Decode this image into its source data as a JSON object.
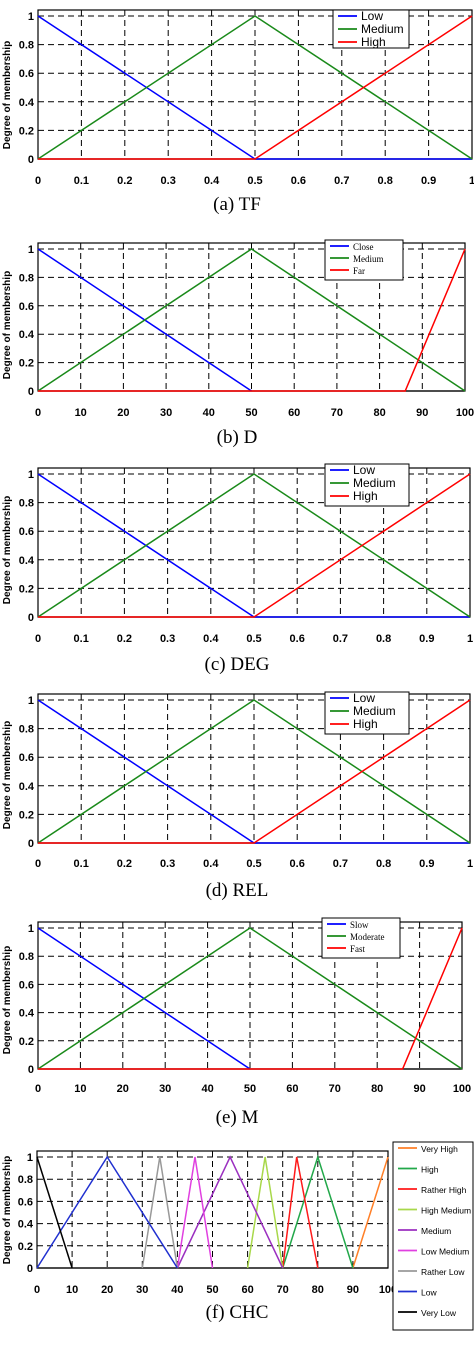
{
  "chart_data": [
    {
      "type": "line",
      "caption": "(a) TF",
      "ylabel": "Degree of membership",
      "xlim": [
        0,
        1
      ],
      "ylim": [
        0,
        1
      ],
      "xticks": [
        "0",
        "0.1",
        "0.2",
        "0.3",
        "0.4",
        "0.5",
        "0.6",
        "0.7",
        "0.8",
        "0.9",
        "1"
      ],
      "yticks": [
        "0",
        "0.2",
        "0.4",
        "0.6",
        "0.8",
        "1"
      ],
      "grid": true,
      "legend_position": "top-right",
      "series": [
        {
          "name": "Low",
          "color": "#0000ff",
          "x": [
            0,
            0.5,
            1
          ],
          "y": [
            1,
            0,
            0
          ]
        },
        {
          "name": "Medium",
          "color": "#1a8a1a",
          "x": [
            0,
            0.5,
            1
          ],
          "y": [
            0,
            1,
            0
          ]
        },
        {
          "name": "High",
          "color": "#ff0000",
          "x": [
            0,
            0.5,
            1
          ],
          "y": [
            0,
            0,
            1
          ]
        }
      ]
    },
    {
      "type": "line",
      "caption": "(b) D",
      "ylabel": "Degree of membership",
      "xlim": [
        0,
        100
      ],
      "ylim": [
        0,
        1
      ],
      "xticks": [
        "0",
        "10",
        "20",
        "30",
        "40",
        "50",
        "60",
        "70",
        "80",
        "90",
        "100"
      ],
      "yticks": [
        "0",
        "0.2",
        "0.4",
        "0.6",
        "0.8",
        "1"
      ],
      "grid": true,
      "legend_position": "top-right",
      "series": [
        {
          "name": "Close",
          "color": "#0000ff",
          "x": [
            0,
            50
          ],
          "y": [
            1,
            0
          ]
        },
        {
          "name": "Medium",
          "color": "#1a8a1a",
          "x": [
            0,
            50,
            100
          ],
          "y": [
            0,
            1,
            0
          ]
        },
        {
          "name": "Far",
          "color": "#ff0000",
          "x": [
            0,
            86,
            100
          ],
          "y": [
            0,
            0,
            1
          ]
        }
      ]
    },
    {
      "type": "line",
      "caption": "(c) DEG",
      "ylabel": "Degree of membership",
      "xlim": [
        0,
        1
      ],
      "ylim": [
        0,
        1
      ],
      "xticks": [
        "0",
        "0.1",
        "0.2",
        "0.3",
        "0.4",
        "0.5",
        "0.6",
        "0.7",
        "0.8",
        "0.9",
        "1"
      ],
      "yticks": [
        "0",
        "0.2",
        "0.4",
        "0.6",
        "0.8",
        "1"
      ],
      "grid": true,
      "legend_position": "top-right",
      "series": [
        {
          "name": "Low",
          "color": "#0000ff",
          "x": [
            0,
            0.5,
            1
          ],
          "y": [
            1,
            0,
            0
          ]
        },
        {
          "name": "Medium",
          "color": "#1a8a1a",
          "x": [
            0,
            0.5,
            1
          ],
          "y": [
            0,
            1,
            0
          ]
        },
        {
          "name": "High",
          "color": "#ff0000",
          "x": [
            0,
            0.5,
            1
          ],
          "y": [
            0,
            0,
            1
          ]
        }
      ]
    },
    {
      "type": "line",
      "caption": "(d) REL",
      "ylabel": "Degree of membership",
      "xlim": [
        0,
        1
      ],
      "ylim": [
        0,
        1
      ],
      "xticks": [
        "0",
        "0.1",
        "0.2",
        "0.3",
        "0.4",
        "0.5",
        "0.6",
        "0.7",
        "0.8",
        "0.9",
        "1"
      ],
      "yticks": [
        "0",
        "0.2",
        "0.4",
        "0.6",
        "0.8",
        "1"
      ],
      "grid": true,
      "legend_position": "top-right",
      "series": [
        {
          "name": "Low",
          "color": "#0000ff",
          "x": [
            0,
            0.5,
            1
          ],
          "y": [
            1,
            0,
            0
          ]
        },
        {
          "name": "Medium",
          "color": "#1a8a1a",
          "x": [
            0,
            0.5,
            1
          ],
          "y": [
            0,
            1,
            0
          ]
        },
        {
          "name": "High",
          "color": "#ff0000",
          "x": [
            0,
            0.5,
            1
          ],
          "y": [
            0,
            0,
            1
          ]
        }
      ]
    },
    {
      "type": "line",
      "caption": "(e) M",
      "ylabel": "Degree of membership",
      "xlim": [
        0,
        100
      ],
      "ylim": [
        0,
        1
      ],
      "xticks": [
        "0",
        "10",
        "20",
        "30",
        "40",
        "50",
        "60",
        "70",
        "80",
        "90",
        "100"
      ],
      "yticks": [
        "0",
        "0.2",
        "0.4",
        "0.6",
        "0.8",
        "1"
      ],
      "grid": true,
      "legend_position": "top-right",
      "series": [
        {
          "name": "Slow",
          "color": "#0000ff",
          "x": [
            0,
            50
          ],
          "y": [
            1,
            0
          ]
        },
        {
          "name": "Moderate",
          "color": "#1a8a1a",
          "x": [
            0,
            50,
            100
          ],
          "y": [
            0,
            1,
            0
          ]
        },
        {
          "name": "Fast",
          "color": "#ff0000",
          "x": [
            0,
            86,
            100
          ],
          "y": [
            0,
            0,
            1
          ]
        }
      ]
    },
    {
      "type": "line",
      "caption": "(f) CHC",
      "ylabel": "Degree of membership",
      "xlim": [
        0,
        100
      ],
      "ylim": [
        0,
        1
      ],
      "xticks": [
        "0",
        "10",
        "20",
        "30",
        "40",
        "50",
        "60",
        "70",
        "80",
        "90",
        "100"
      ],
      "yticks": [
        "0",
        "0.2",
        "0.4",
        "0.6",
        "0.8",
        "1"
      ],
      "grid": true,
      "legend_position": "right",
      "series": [
        {
          "name": "Very High",
          "color": "#ff7f27",
          "x": [
            90,
            100
          ],
          "y": [
            0,
            1
          ]
        },
        {
          "name": "High",
          "color": "#22a84a",
          "x": [
            70,
            80,
            90
          ],
          "y": [
            0,
            1,
            0
          ]
        },
        {
          "name": "Rather High",
          "color": "#ff1a1a",
          "x": [
            70,
            74,
            80
          ],
          "y": [
            0,
            1,
            0
          ]
        },
        {
          "name": "High Medium",
          "color": "#a8d84a",
          "x": [
            60,
            65,
            70
          ],
          "y": [
            0,
            1,
            0
          ]
        },
        {
          "name": "Medium",
          "color": "#9b30c0",
          "x": [
            40,
            55,
            70
          ],
          "y": [
            0,
            1,
            0
          ]
        },
        {
          "name": "Low Medium",
          "color": "#e040e0",
          "x": [
            40,
            45,
            50
          ],
          "y": [
            0,
            1,
            0
          ]
        },
        {
          "name": "Rather Low",
          "color": "#999999",
          "x": [
            30,
            35,
            40
          ],
          "y": [
            0,
            1,
            0
          ]
        },
        {
          "name": "Low",
          "color": "#2030d0",
          "x": [
            0,
            20,
            40
          ],
          "y": [
            0,
            1,
            0
          ]
        },
        {
          "name": "Very Low",
          "color": "#000000",
          "x": [
            0,
            10
          ],
          "y": [
            1,
            0
          ]
        }
      ]
    }
  ]
}
